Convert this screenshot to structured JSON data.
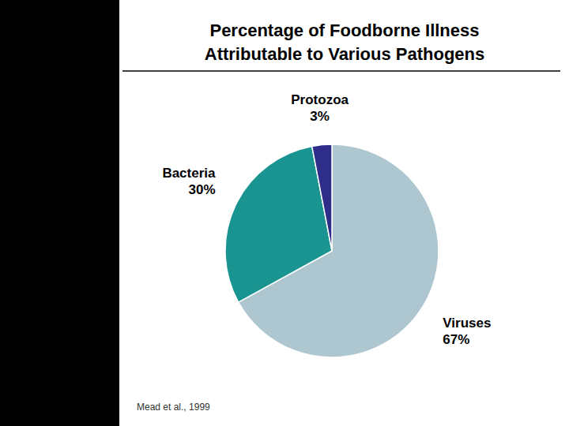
{
  "chart_data": {
    "type": "pie",
    "title": "Percentage of Foodborne Illness\nAttributable to Various Pathogens",
    "categories": [
      "Viruses",
      "Bacteria",
      "Protozoa"
    ],
    "values": [
      67,
      30,
      3
    ],
    "value_labels": [
      "67%",
      "30%",
      "3%"
    ],
    "colors": [
      "#aec6d0",
      "#1a9490",
      "#2e2e8a"
    ],
    "data_labels": true,
    "annotations": [
      "Mead et al., 1999"
    ]
  }
}
